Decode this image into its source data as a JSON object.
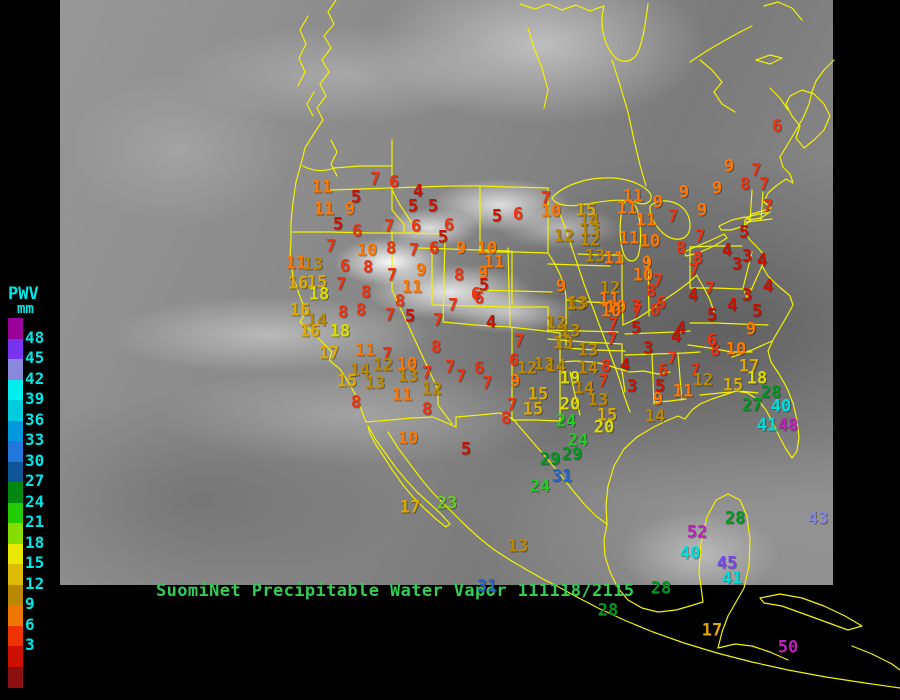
{
  "legend": {
    "title": "PWV",
    "unit": "mm",
    "text_color": "#00e5e5",
    "tick_labels": [
      "48",
      "45",
      "42",
      "39",
      "36",
      "33",
      "30",
      "27",
      "24",
      "21",
      "18",
      "15",
      "12",
      "9",
      "6",
      "3"
    ],
    "box_colors": [
      "#990099",
      "#7733ee",
      "#8888dd",
      "#00eeee",
      "#00ccdd",
      "#0099dd",
      "#2277dd",
      "#115599",
      "#008811",
      "#22cc00",
      "#88dd00",
      "#e8e800",
      "#ddbb00",
      "#bb8800",
      "#ee7700",
      "#ee3300",
      "#cc0f00",
      "#8b1111"
    ]
  },
  "titlebar": {
    "text": "SuomiNet Precipitable Water Vapor 111118/2115",
    "color": "#33cc55"
  },
  "map": {
    "outline_color": "#f2f200",
    "region": "North America satellite infrared view with state and coastline outlines"
  },
  "value_color_scale": [
    {
      "min": 48,
      "color": "#bb22bb"
    },
    {
      "min": 45,
      "color": "#7744ee"
    },
    {
      "min": 42,
      "color": "#8888dd"
    },
    {
      "min": 39,
      "color": "#00dddd"
    },
    {
      "min": 36,
      "color": "#00bbdd"
    },
    {
      "min": 33,
      "color": "#2277dd"
    },
    {
      "min": 30,
      "color": "#2266cc"
    },
    {
      "min": 27,
      "color": "#009922"
    },
    {
      "min": 24,
      "color": "#22cc22"
    },
    {
      "min": 21,
      "color": "#66cc22"
    },
    {
      "min": 18,
      "color": "#dddd00"
    },
    {
      "min": 15,
      "color": "#ddaa00"
    },
    {
      "min": 12,
      "color": "#bb8800"
    },
    {
      "min": 9,
      "color": "#ff7700"
    },
    {
      "min": 6,
      "color": "#ee3311"
    },
    {
      "min": 0,
      "color": "#cc1100"
    }
  ],
  "stations": [
    [
      11,
      322,
      189
    ],
    [
      7,
      375,
      181
    ],
    [
      6,
      394,
      184
    ],
    [
      4,
      418,
      193
    ],
    [
      5,
      356,
      199
    ],
    [
      11,
      324,
      211
    ],
    [
      9,
      350,
      211
    ],
    [
      5,
      413,
      208
    ],
    [
      5,
      433,
      208
    ],
    [
      5,
      338,
      226
    ],
    [
      6,
      357,
      233
    ],
    [
      7,
      389,
      228
    ],
    [
      6,
      416,
      228
    ],
    [
      6,
      449,
      227
    ],
    [
      5,
      443,
      239
    ],
    [
      7,
      331,
      248
    ],
    [
      10,
      367,
      252
    ],
    [
      8,
      391,
      250
    ],
    [
      7,
      414,
      252
    ],
    [
      6,
      434,
      250
    ],
    [
      9,
      461,
      250
    ],
    [
      10,
      487,
      250
    ],
    [
      11,
      494,
      264
    ],
    [
      9,
      421,
      272
    ],
    [
      8,
      459,
      277
    ],
    [
      9,
      483,
      275
    ],
    [
      5,
      484,
      287
    ],
    [
      6,
      476,
      296
    ],
    [
      8,
      400,
      303
    ],
    [
      11,
      412,
      289
    ],
    [
      7,
      392,
      277
    ],
    [
      11,
      296,
      265
    ],
    [
      13,
      313,
      266
    ],
    [
      6,
      345,
      268
    ],
    [
      8,
      368,
      269
    ],
    [
      16,
      298,
      285
    ],
    [
      15,
      317,
      284
    ],
    [
      7,
      341,
      286
    ],
    [
      18,
      319,
      296
    ],
    [
      8,
      366,
      294
    ],
    [
      16,
      300,
      312
    ],
    [
      8,
      343,
      314
    ],
    [
      8,
      361,
      312
    ],
    [
      7,
      390,
      317
    ],
    [
      5,
      410,
      318
    ],
    [
      14,
      317,
      322
    ],
    [
      16,
      310,
      333
    ],
    [
      18,
      340,
      333
    ],
    [
      17,
      329,
      355
    ],
    [
      11,
      365,
      352
    ],
    [
      7,
      387,
      356
    ],
    [
      12,
      383,
      367
    ],
    [
      10,
      407,
      366
    ],
    [
      14,
      360,
      372
    ],
    [
      15,
      347,
      383
    ],
    [
      13,
      375,
      385
    ],
    [
      13,
      408,
      378
    ],
    [
      7,
      427,
      375
    ],
    [
      11,
      402,
      397
    ],
    [
      12,
      432,
      391
    ],
    [
      8,
      356,
      404
    ],
    [
      8,
      427,
      411
    ],
    [
      10,
      408,
      440
    ],
    [
      5,
      466,
      451
    ],
    [
      17,
      410,
      509
    ],
    [
      23,
      447,
      505
    ],
    [
      7,
      453,
      307
    ],
    [
      6,
      479,
      300
    ],
    [
      4,
      491,
      324
    ],
    [
      7,
      438,
      322
    ],
    [
      8,
      436,
      349
    ],
    [
      7,
      450,
      369
    ],
    [
      7,
      461,
      378
    ],
    [
      6,
      479,
      370
    ],
    [
      7,
      487,
      385
    ],
    [
      5,
      497,
      218
    ],
    [
      6,
      518,
      216
    ],
    [
      7,
      546,
      200
    ],
    [
      10,
      551,
      213
    ],
    [
      15,
      586,
      212
    ],
    [
      14,
      589,
      222
    ],
    [
      13,
      590,
      232
    ],
    [
      11,
      633,
      198
    ],
    [
      11,
      627,
      210
    ],
    [
      9,
      658,
      204
    ],
    [
      11,
      646,
      222
    ],
    [
      9,
      684,
      194
    ],
    [
      7,
      673,
      218
    ],
    [
      12,
      564,
      238
    ],
    [
      12,
      590,
      242
    ],
    [
      11,
      629,
      240
    ],
    [
      10,
      650,
      243
    ],
    [
      7,
      700,
      238
    ],
    [
      8,
      681,
      250
    ],
    [
      13,
      595,
      258
    ],
    [
      11,
      614,
      260
    ],
    [
      9,
      647,
      265
    ],
    [
      10,
      643,
      277
    ],
    [
      9,
      561,
      288
    ],
    [
      7,
      658,
      283
    ],
    [
      12,
      610,
      290
    ],
    [
      8,
      651,
      293
    ],
    [
      11,
      609,
      301
    ],
    [
      6,
      661,
      305
    ],
    [
      13,
      578,
      305
    ],
    [
      10,
      616,
      309
    ],
    [
      7,
      636,
      308
    ],
    [
      6,
      655,
      312
    ],
    [
      6,
      777,
      128
    ],
    [
      9,
      729,
      168
    ],
    [
      7,
      756,
      172
    ],
    [
      8,
      745,
      186
    ],
    [
      7,
      764,
      186
    ],
    [
      9,
      717,
      190
    ],
    [
      9,
      702,
      212
    ],
    [
      7,
      768,
      208
    ],
    [
      5,
      744,
      234
    ],
    [
      4,
      727,
      252
    ],
    [
      3,
      747,
      258
    ],
    [
      4,
      762,
      262
    ],
    [
      8,
      698,
      260
    ],
    [
      3,
      737,
      266
    ],
    [
      7,
      694,
      272
    ],
    [
      4,
      768,
      288
    ],
    [
      7,
      710,
      290
    ],
    [
      4,
      693,
      297
    ],
    [
      3,
      747,
      297
    ],
    [
      4,
      732,
      307
    ],
    [
      5,
      712,
      317
    ],
    [
      5,
      757,
      313
    ],
    [
      13,
      576,
      306
    ],
    [
      10,
      611,
      313
    ],
    [
      7,
      637,
      313
    ],
    [
      12,
      556,
      325
    ],
    [
      13,
      570,
      333
    ],
    [
      7,
      613,
      326
    ],
    [
      5,
      636,
      330
    ],
    [
      4,
      681,
      330
    ],
    [
      7,
      519,
      343
    ],
    [
      13,
      563,
      345
    ],
    [
      7,
      612,
      341
    ],
    [
      4,
      676,
      338
    ],
    [
      13,
      588,
      352
    ],
    [
      3,
      648,
      350
    ],
    [
      7,
      672,
      360
    ],
    [
      6,
      514,
      362
    ],
    [
      12,
      527,
      370
    ],
    [
      12,
      544,
      366
    ],
    [
      14,
      556,
      368
    ],
    [
      14,
      588,
      370
    ],
    [
      8,
      606,
      368
    ],
    [
      4,
      625,
      367
    ],
    [
      9,
      515,
      383
    ],
    [
      19,
      570,
      380
    ],
    [
      14,
      584,
      390
    ],
    [
      7,
      603,
      383
    ],
    [
      3,
      632,
      388
    ],
    [
      5,
      660,
      388
    ],
    [
      6,
      663,
      372
    ],
    [
      7,
      695,
      372
    ],
    [
      15,
      538,
      396
    ],
    [
      13,
      598,
      402
    ],
    [
      9,
      658,
      401
    ],
    [
      7,
      512,
      407
    ],
    [
      15,
      533,
      411
    ],
    [
      20,
      570,
      406
    ],
    [
      8,
      506,
      420
    ],
    [
      14,
      655,
      418
    ],
    [
      15,
      607,
      417
    ],
    [
      24,
      566,
      423
    ],
    [
      20,
      604,
      429
    ],
    [
      24,
      578,
      442
    ],
    [
      29,
      550,
      461
    ],
    [
      29,
      572,
      456
    ],
    [
      31,
      562,
      478
    ],
    [
      24,
      540,
      488
    ],
    [
      12,
      703,
      382
    ],
    [
      11,
      683,
      393
    ],
    [
      8,
      715,
      352
    ],
    [
      6,
      712,
      342
    ],
    [
      10,
      736,
      351
    ],
    [
      9,
      751,
      331
    ],
    [
      17,
      749,
      368
    ],
    [
      18,
      757,
      380
    ],
    [
      15,
      733,
      387
    ],
    [
      28,
      771,
      394
    ],
    [
      27,
      752,
      407
    ],
    [
      40,
      781,
      408
    ],
    [
      41,
      767,
      427
    ],
    [
      48,
      788,
      427
    ],
    [
      13,
      518,
      548
    ],
    [
      28,
      735,
      520
    ],
    [
      52,
      697,
      534
    ],
    [
      40,
      690,
      555
    ],
    [
      43,
      818,
      520
    ],
    [
      45,
      727,
      565
    ],
    [
      41,
      732,
      580
    ],
    [
      28,
      661,
      590
    ],
    [
      17,
      712,
      632
    ],
    [
      50,
      788,
      649
    ],
    [
      28,
      608,
      612
    ],
    [
      31,
      487,
      588
    ]
  ]
}
